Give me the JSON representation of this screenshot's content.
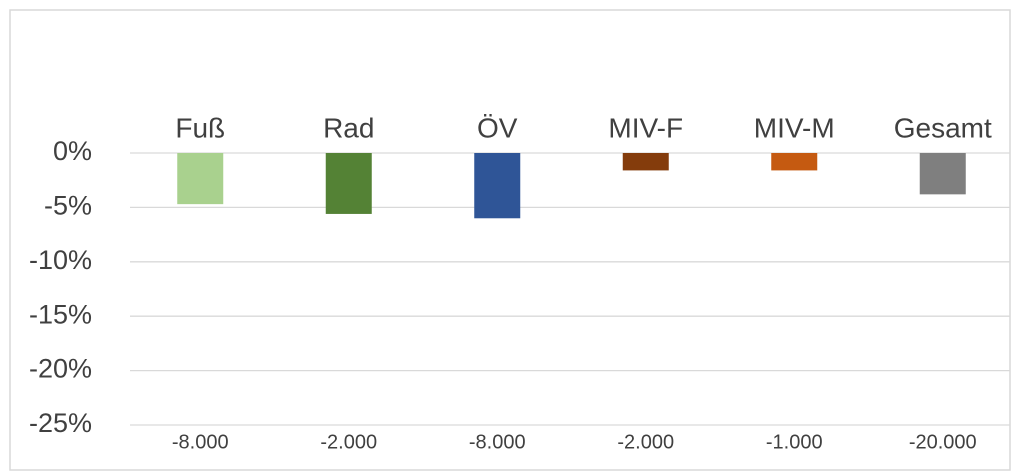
{
  "chart_data": {
    "type": "bar",
    "categories": [
      "Fuß",
      "Rad",
      "ÖV",
      "MIV-F",
      "MIV-M",
      "Gesamt"
    ],
    "values": [
      -4.7,
      -5.6,
      -6.0,
      -1.6,
      -1.6,
      -3.8
    ],
    "colors": [
      "#a9d18e",
      "#548235",
      "#2f5597",
      "#843c0c",
      "#c55a11",
      "#7f7f7f"
    ],
    "bottom_labels": [
      "-8.000",
      "-2.000",
      "-8.000",
      "-2.000",
      "-1.000",
      "-20.000"
    ],
    "ylim": [
      -25,
      0
    ],
    "yticks": [
      {
        "value": 0,
        "label": "0%"
      },
      {
        "value": -5,
        "label": "-5%"
      },
      {
        "value": -10,
        "label": "-10%"
      },
      {
        "value": -15,
        "label": "-15%"
      },
      {
        "value": -20,
        "label": "-20%"
      },
      {
        "value": -25,
        "label": "-25%"
      }
    ],
    "grid": true
  }
}
